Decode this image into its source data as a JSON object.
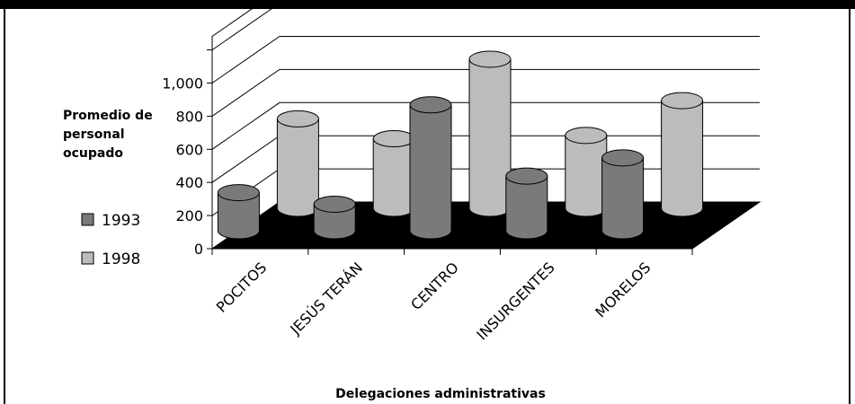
{
  "chart_data": {
    "type": "bar",
    "style": "3d-cylinder",
    "ylabel": [
      "Promedio de",
      "personal",
      "ocupado"
    ],
    "xlabel": "Delegaciones administrativas",
    "categories": [
      "POCITOS",
      "JESÚS TERÁN",
      "CENTRO",
      "INSURGENTES",
      "MORELOS"
    ],
    "y_ticks": [
      "0",
      "200",
      "400",
      "600",
      "800",
      "1,000"
    ],
    "ylim": [
      0,
      1000
    ],
    "grid": true,
    "legend_position": "left",
    "series": [
      {
        "name": "1993",
        "color": "#7a7a7a",
        "values": [
          230,
          160,
          760,
          330,
          440
        ]
      },
      {
        "name": "1998",
        "color": "#bcbcbc",
        "values": [
          540,
          420,
          900,
          440,
          650
        ]
      }
    ]
  }
}
